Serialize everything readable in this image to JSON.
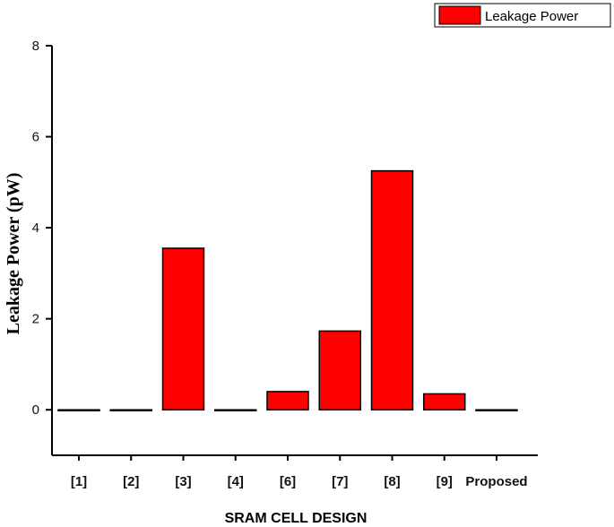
{
  "chart_data": {
    "type": "bar",
    "categories": [
      "[1]",
      "[2]",
      "[3]",
      "[4]",
      "[6]",
      "[7]",
      "[8]",
      "[9]",
      "Proposed"
    ],
    "series": [
      {
        "name": "Leakage Power",
        "values": [
          0.0,
          0.0,
          3.55,
          0.0,
          0.4,
          1.73,
          5.25,
          0.35,
          0.0
        ],
        "color": "#ff0000"
      }
    ],
    "xlabel": "SRAM CELL DESIGN",
    "ylabel": "Leakage Power (pW)",
    "ylim": [
      -1,
      8
    ],
    "yticks": [
      0,
      2,
      4,
      6,
      8
    ],
    "grid": false,
    "legend": "top-right"
  }
}
